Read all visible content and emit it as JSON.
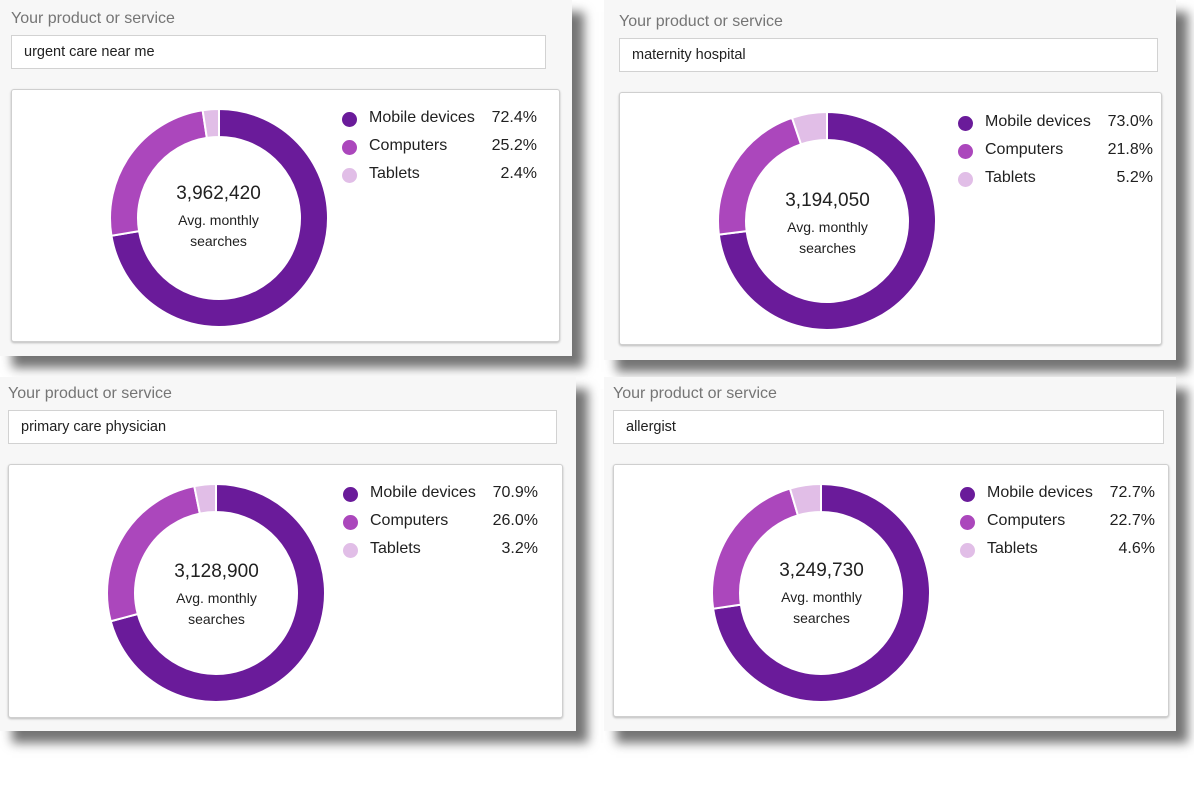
{
  "common": {
    "product_label": "Your product or service",
    "center_sub_line1": "Avg. monthly",
    "center_sub_line2": "searches"
  },
  "legend_labels": [
    "Mobile devices",
    "Computers",
    "Tablets"
  ],
  "colors": {
    "mobile": "#6a1b9a",
    "computers": "#ab47bc",
    "tablets": "#e1bee7"
  },
  "panels": [
    {
      "query": "urgent care near me",
      "total": "3,962,420",
      "percent_labels": [
        "72.4%",
        "25.2%",
        "2.4%"
      ]
    },
    {
      "query": "maternity hospital",
      "total": "3,194,050",
      "percent_labels": [
        "73.0%",
        "21.8%",
        "5.2%"
      ]
    },
    {
      "query": "primary care physician",
      "total": "3,128,900",
      "percent_labels": [
        "70.9%",
        "26.0%",
        "3.2%"
      ]
    },
    {
      "query": "allergist",
      "total": "3,249,730",
      "percent_labels": [
        "72.7%",
        "22.7%",
        "4.6%"
      ]
    }
  ],
  "chart_data": [
    {
      "type": "pie",
      "title": "",
      "categories": [
        "Mobile devices",
        "Computers",
        "Tablets"
      ],
      "values": [
        72.4,
        25.2,
        2.4
      ],
      "total_searches": 3962420
    },
    {
      "type": "pie",
      "title": "",
      "categories": [
        "Mobile devices",
        "Computers",
        "Tablets"
      ],
      "values": [
        73.0,
        21.8,
        5.2
      ],
      "total_searches": 3194050
    },
    {
      "type": "pie",
      "title": "",
      "categories": [
        "Mobile devices",
        "Computers",
        "Tablets"
      ],
      "values": [
        70.9,
        26.0,
        3.2
      ],
      "total_searches": 3128900
    },
    {
      "type": "pie",
      "title": "",
      "categories": [
        "Mobile devices",
        "Computers",
        "Tablets"
      ],
      "values": [
        72.7,
        22.7,
        4.6
      ],
      "total_searches": 3249730
    }
  ]
}
